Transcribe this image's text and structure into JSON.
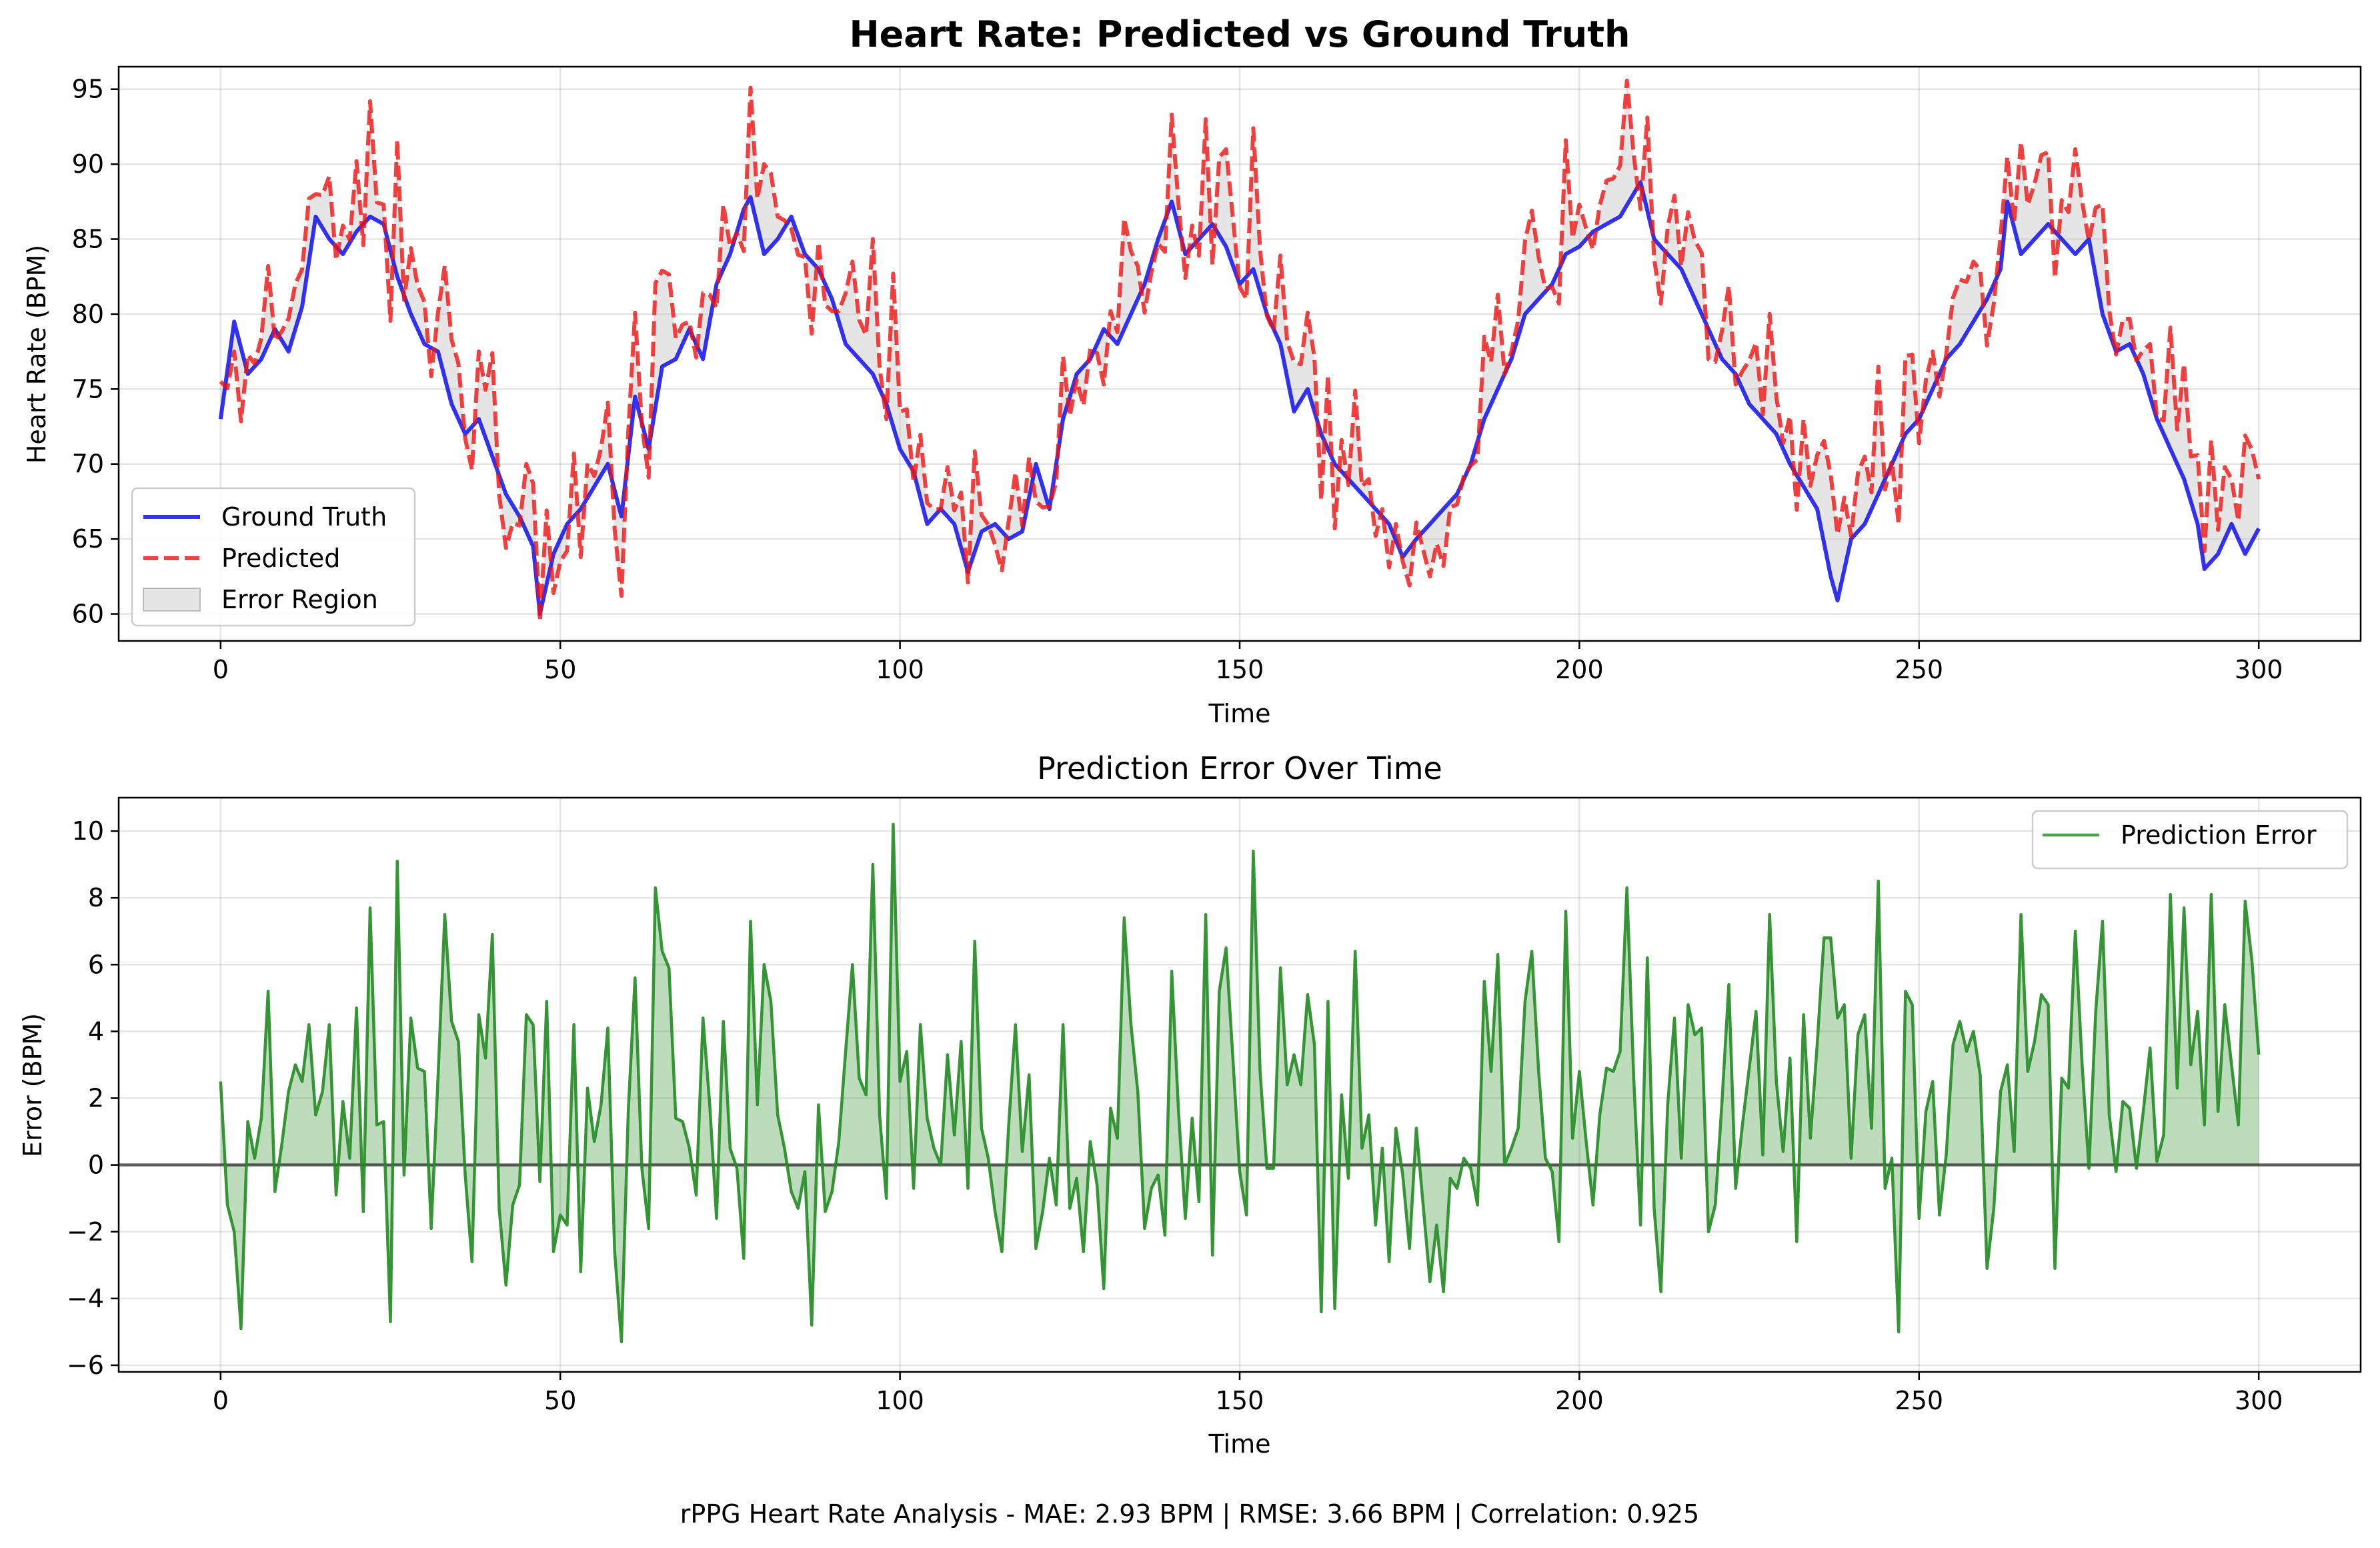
{
  "caption": "rPPG Heart Rate Analysis - MAE: 2.93 BPM | RMSE: 3.66 BPM | Correlation: 0.925",
  "chart_data": [
    {
      "type": "line",
      "title": "Heart Rate: Predicted vs Ground Truth",
      "xlabel": "Time",
      "ylabel": "Heart Rate (BPM)",
      "xlim": [
        -15,
        315
      ],
      "ylim": [
        58.2,
        96.5
      ],
      "xticks": [
        0,
        50,
        100,
        150,
        200,
        250,
        300
      ],
      "yticks": [
        60,
        65,
        70,
        75,
        80,
        85,
        90,
        95
      ],
      "grid": true,
      "legend_position": "lower-left",
      "x": {
        "start": 0,
        "step": 1,
        "count": 301
      },
      "series": [
        {
          "name": "Ground Truth",
          "color": "#0000ee",
          "style": "solid",
          "values": []
        },
        {
          "name": "Predicted",
          "color": "#ee1111",
          "style": "dashed",
          "values": []
        }
      ],
      "fill": {
        "name": "Error Region",
        "color": "#bdbdbd",
        "between": [
          "Ground Truth",
          "Predicted"
        ]
      },
      "key_points": {
        "ground_truth_peaks": [
          [
            14,
            86.5
          ],
          [
            78,
            87.8
          ],
          [
            140,
            87.5
          ],
          [
            209,
            88.8
          ],
          [
            263,
            87.5
          ]
        ],
        "ground_truth_troughs": [
          [
            47,
            60.0
          ],
          [
            110,
            62.8
          ],
          [
            174,
            63.8
          ],
          [
            238,
            60.9
          ],
          [
            292,
            63.0
          ]
        ],
        "predicted_max": [
          78,
          95.0
        ]
      }
    },
    {
      "type": "area",
      "title": "Prediction Error Over Time",
      "xlabel": "Time",
      "ylabel": "Error (BPM)",
      "xlim": [
        -15,
        315
      ],
      "ylim": [
        -6.2,
        11.0
      ],
      "xticks": [
        0,
        50,
        100,
        150,
        200,
        250,
        300
      ],
      "yticks": [
        -6,
        -4,
        -2,
        0,
        2,
        4,
        6,
        8,
        10
      ],
      "grid": true,
      "legend_position": "top-right",
      "x": {
        "start": 0,
        "step": 1,
        "count": 301
      },
      "series": [
        {
          "name": "Prediction Error",
          "color": "#228b22",
          "values": []
        }
      ],
      "zero_line": true,
      "key_points": {
        "max": [
          99,
          10.2
        ],
        "min": [
          59,
          -5.3
        ],
        "notable": [
          [
            0,
            2.5
          ],
          [
            3,
            -4.9
          ],
          [
            27,
            9.1
          ],
          [
            65,
            8.3
          ],
          [
            97,
            9.0
          ],
          [
            152,
            9.4
          ],
          [
            210,
            8.3
          ],
          [
            252,
            8.5
          ],
          [
            253,
            -5.0
          ],
          [
            293,
            8.1
          ],
          [
            299,
            7.9
          ],
          [
            300,
            3.3
          ]
        ]
      }
    }
  ]
}
